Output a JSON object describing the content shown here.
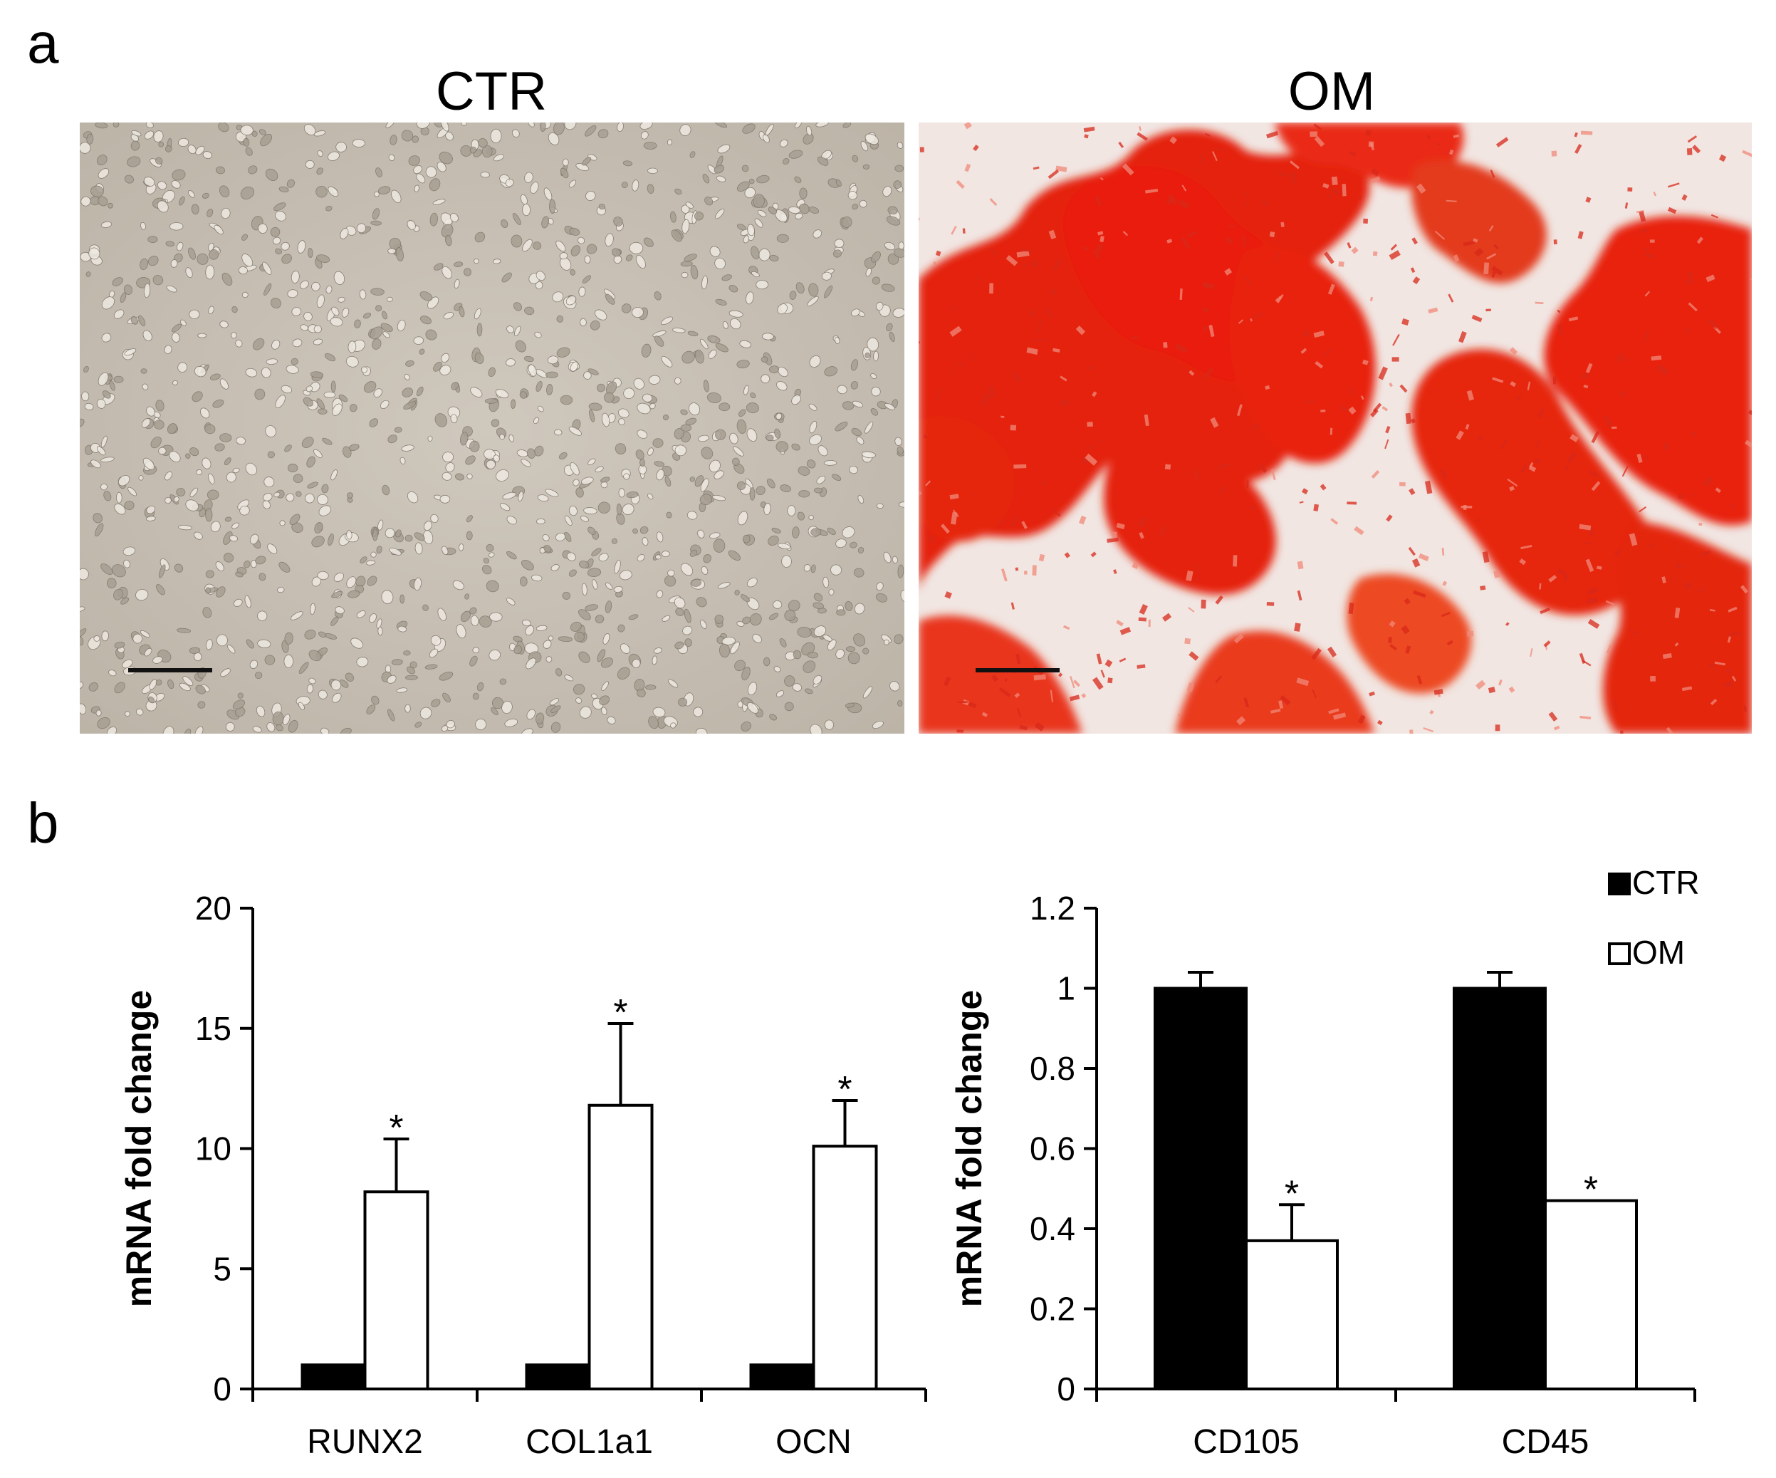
{
  "panel_a": {
    "letter": "a",
    "images": [
      {
        "title": "CTR",
        "description_icon": "phase-contrast-micrograph"
      },
      {
        "title": "OM",
        "description_icon": "alizarin-red-stained-micrograph"
      }
    ]
  },
  "panel_b": {
    "letter": "b"
  },
  "colors": {
    "ctr": "#000000",
    "om": "#ffffff",
    "stain": "#e8200c",
    "ctr_bg": "#c9c1b6"
  },
  "chart_data": [
    {
      "type": "bar",
      "categories": [
        "RUNX2",
        "COL1a1",
        "OCN"
      ],
      "series": [
        {
          "name": "CTR",
          "values": [
            1,
            1,
            1
          ],
          "errors": [
            0,
            0,
            0
          ],
          "significant": [
            false,
            false,
            false
          ]
        },
        {
          "name": "OM",
          "values": [
            8.2,
            11.8,
            10.1
          ],
          "errors": [
            2.2,
            3.4,
            1.9
          ],
          "significant": [
            true,
            true,
            true
          ]
        }
      ],
      "ylabel": "mRNA fold change",
      "xlabel": "",
      "ylim": [
        0,
        20
      ],
      "yticks": [
        "0",
        "5",
        "10",
        "15",
        "20"
      ],
      "ytick_values": [
        0,
        5,
        10,
        15,
        20
      ],
      "significance_mark": "*",
      "grid": false
    },
    {
      "type": "bar",
      "categories": [
        "CD105",
        "CD45"
      ],
      "series": [
        {
          "name": "CTR",
          "values": [
            1,
            1
          ],
          "errors": [
            0.04,
            0.04
          ],
          "significant": [
            false,
            false
          ]
        },
        {
          "name": "OM",
          "values": [
            0.37,
            0.47
          ],
          "errors": [
            0.09,
            0
          ],
          "significant": [
            true,
            true
          ]
        }
      ],
      "ylabel": "mRNA fold change",
      "xlabel": "",
      "ylim": [
        0,
        1.2
      ],
      "yticks": [
        "0",
        "0.2",
        "0.4",
        "0.6",
        "0.8",
        "1",
        "1.2"
      ],
      "ytick_values": [
        0,
        0.2,
        0.4,
        0.6,
        0.8,
        1,
        1.2
      ],
      "significance_mark": "*",
      "legend": [
        "CTR",
        "OM"
      ],
      "legend_position": "top-right",
      "grid": false
    }
  ]
}
